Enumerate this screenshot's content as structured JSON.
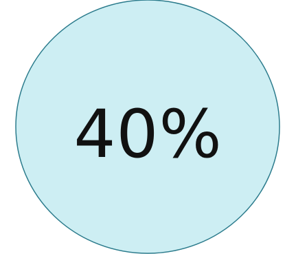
{
  "shape": {
    "fill": "#cdeef3",
    "stroke": "#2b7b8c"
  },
  "label": {
    "text": "40%"
  },
  "value_percent": 40
}
